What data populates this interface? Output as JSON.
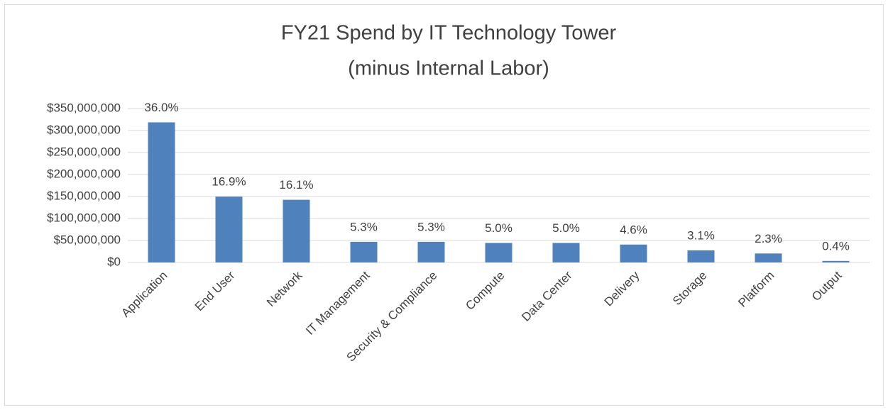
{
  "chart_data": {
    "type": "bar",
    "title": "FY21 Spend by IT Technology Tower",
    "subtitle": "(minus Internal Labor)",
    "categories": [
      "Application",
      "End User",
      "Network",
      "IT Management",
      "Security & Compliance",
      "Compute",
      "Data Center",
      "Delivery",
      "Storage",
      "Platform",
      "Output"
    ],
    "values": [
      318600000,
      149600000,
      142500000,
      46900000,
      46900000,
      44250000,
      44250000,
      40700000,
      27400000,
      20400000,
      3500000
    ],
    "value_labels": [
      "36.0%",
      "16.9%",
      "16.1%",
      "5.3%",
      "5.3%",
      "5.0%",
      "5.0%",
      "4.6%",
      "3.1%",
      "2.3%",
      "0.4%"
    ],
    "color": "#4f81bd",
    "ylim": [
      0,
      350000000
    ],
    "yticks": [
      {
        "value": 0,
        "label": "$0"
      },
      {
        "value": 50000000,
        "label": "$50,000,000"
      },
      {
        "value": 100000000,
        "label": "$100,000,000"
      },
      {
        "value": 150000000,
        "label": "$150,000,000"
      },
      {
        "value": 200000000,
        "label": "$200,000,000"
      },
      {
        "value": 250000000,
        "label": "$250,000,000"
      },
      {
        "value": 300000000,
        "label": "$300,000,000"
      },
      {
        "value": 350000000,
        "label": "$350,000,000"
      }
    ],
    "grid": true
  }
}
